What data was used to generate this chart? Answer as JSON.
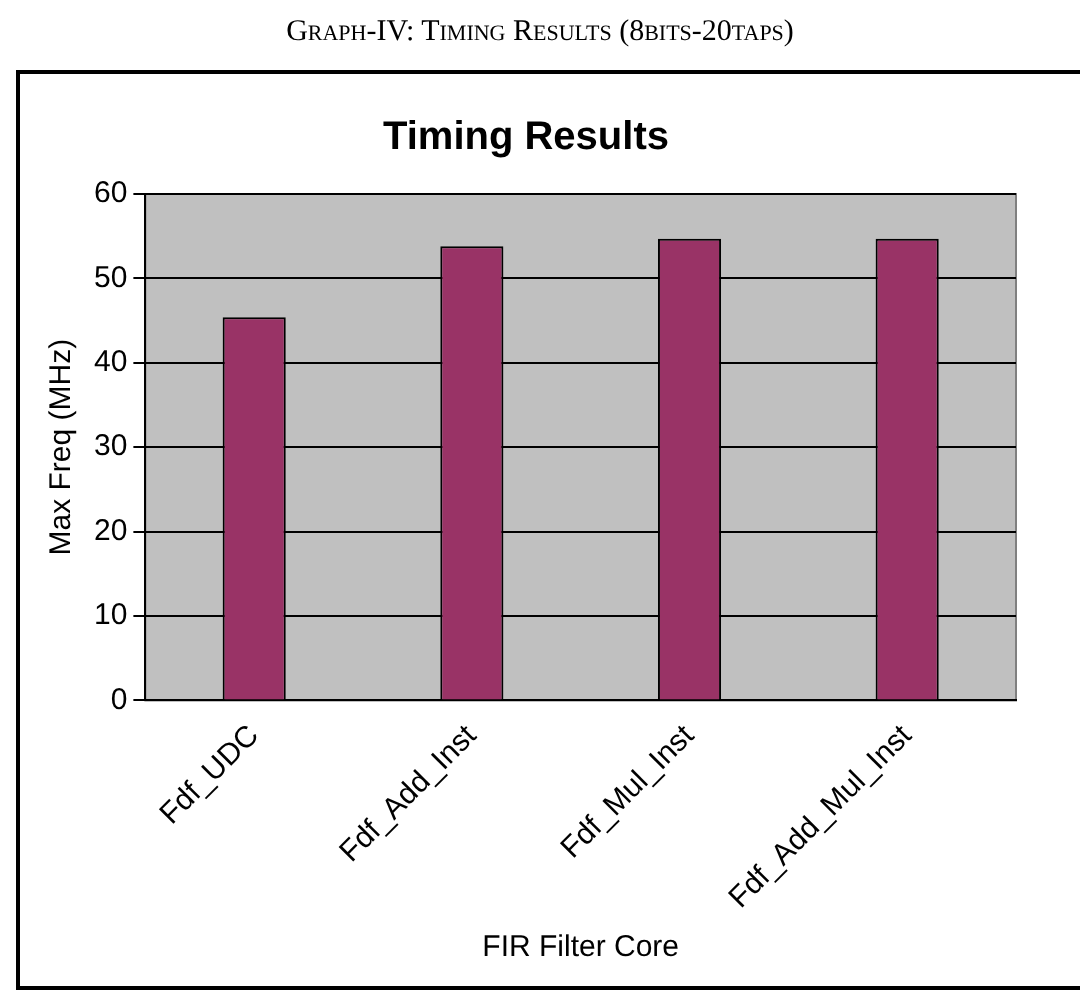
{
  "chart_data": {
    "type": "bar",
    "title": "Timing Results",
    "annotations": [
      "Graph-IV: Timing Results (8bits-20taps)"
    ],
    "xlabel": "FIR Filter Core",
    "ylabel": "Max Freq (MHz)",
    "categories": [
      "Fdf_UDC",
      "Fdf_Add_Inst",
      "Fdf_Mul_Inst",
      "Fdf_Add_Mul_Inst"
    ],
    "values": [
      45.4,
      53.8,
      54.7,
      54.7
    ],
    "color": "#993366",
    "ylim": [
      0,
      60
    ],
    "yticks": [
      0,
      10,
      20,
      30,
      40,
      50,
      60
    ],
    "grid": "y",
    "legend": false
  }
}
